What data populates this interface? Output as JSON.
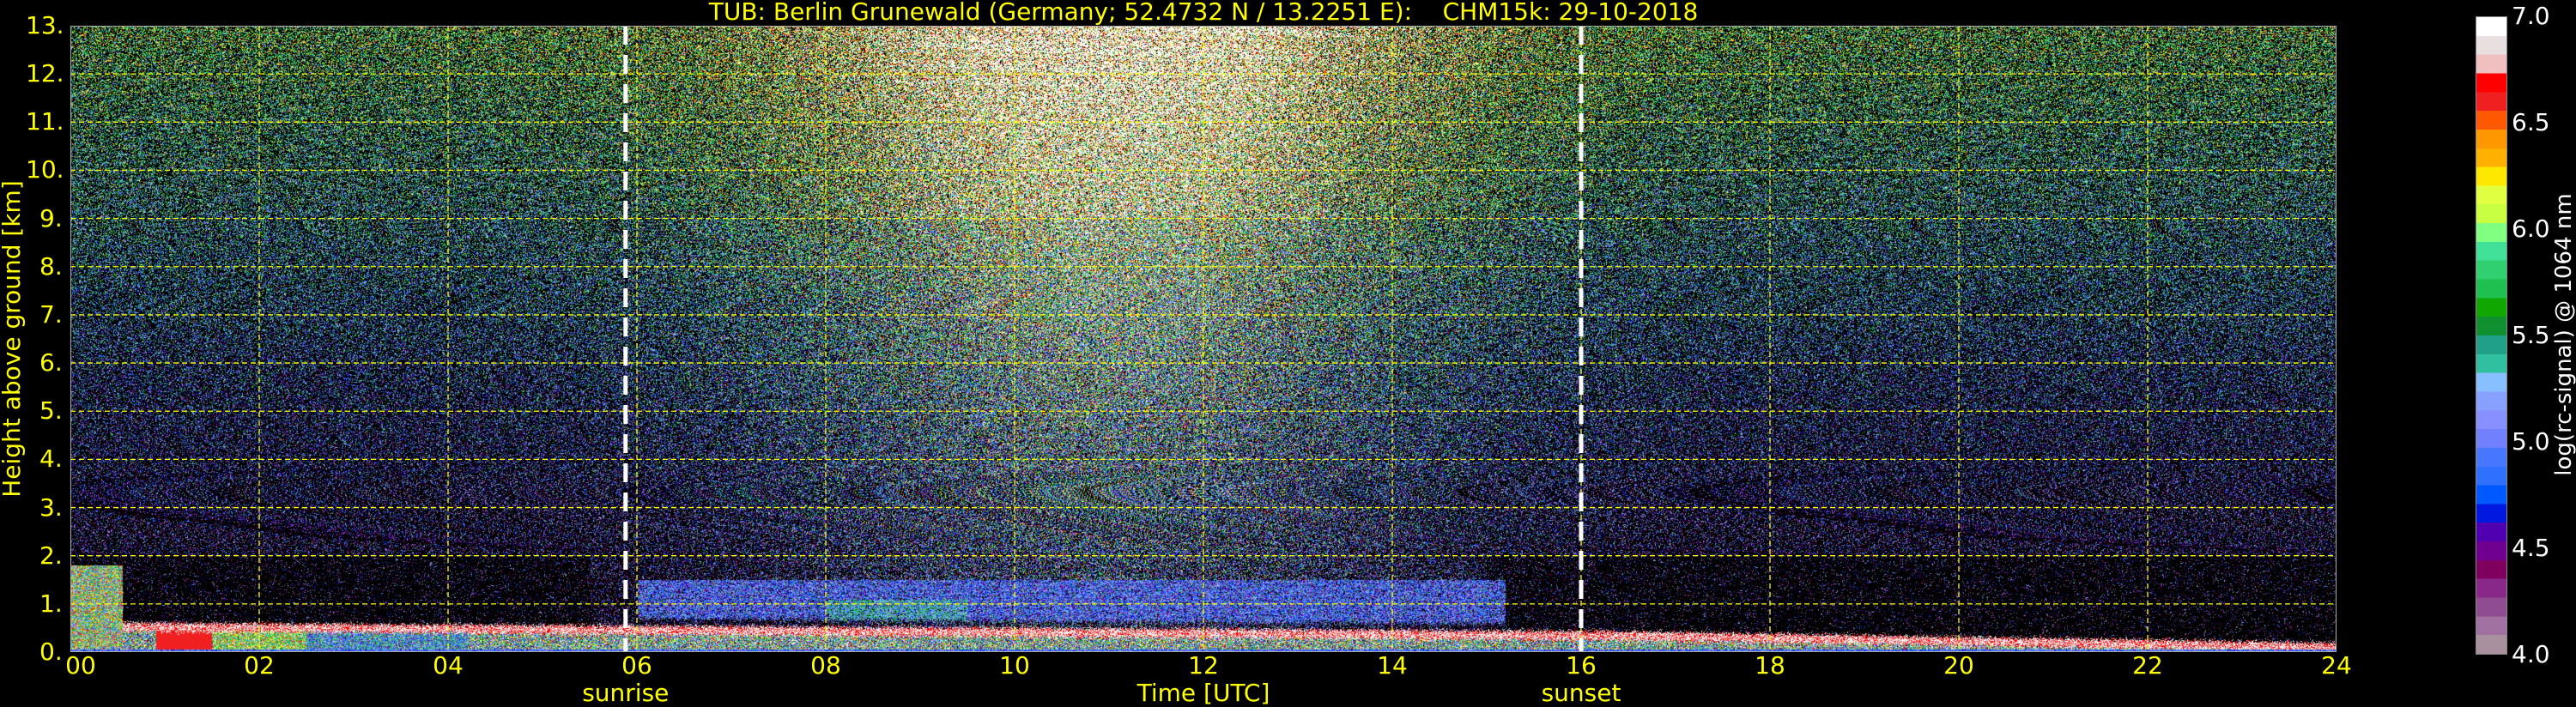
{
  "chart_data": {
    "type": "heatmap",
    "title": "TUB: Berlin Grunewald (Germany; 52.4732 N / 13.2251 E):    CHM15k: 29-10-2018",
    "xlabel": "Time [UTC]",
    "ylabel": "Height above ground [km]",
    "xlim": [
      0,
      24
    ],
    "ylim": [
      0,
      13
    ],
    "x_ticks": [
      "00",
      "02",
      "04",
      "06",
      "08",
      "10",
      "12",
      "14",
      "16",
      "18",
      "20",
      "22",
      "24"
    ],
    "y_ticks": [
      "0.",
      "1.",
      "2.",
      "3.",
      "4.",
      "5.",
      "6.",
      "7.",
      "8.",
      "9.",
      "10.",
      "11.",
      "12.",
      "13."
    ],
    "grid": true,
    "grid_color": "#ffff00",
    "events": [
      {
        "label": "sunrise",
        "time": 5.88
      },
      {
        "label": "sunset",
        "time": 16.0
      }
    ],
    "colorbar": {
      "label": "log(rc-signal) @ 1064 nm",
      "range": [
        4.0,
        7.0
      ],
      "ticks": [
        "4.0",
        "4.5",
        "5.0",
        "5.5",
        "6.0",
        "6.5",
        "7.0"
      ],
      "colors": [
        "#a8909f",
        "#a070a0",
        "#904c90",
        "#882888",
        "#800060",
        "#700090",
        "#5000b0",
        "#0018e0",
        "#0058ff",
        "#3070ff",
        "#4878ff",
        "#7080ff",
        "#8890ff",
        "#88a0ff",
        "#88c0ff",
        "#30c0a0",
        "#20a088",
        "#109030",
        "#10a800",
        "#20c050",
        "#30d070",
        "#40e098",
        "#80ff80",
        "#c8ff40",
        "#e0ff40",
        "#ffe800",
        "#ffb000",
        "#ff9800",
        "#ff5800",
        "#f02020",
        "#ff0000",
        "#f0c0c0",
        "#e8e0e0",
        "#ffffff"
      ]
    }
  }
}
